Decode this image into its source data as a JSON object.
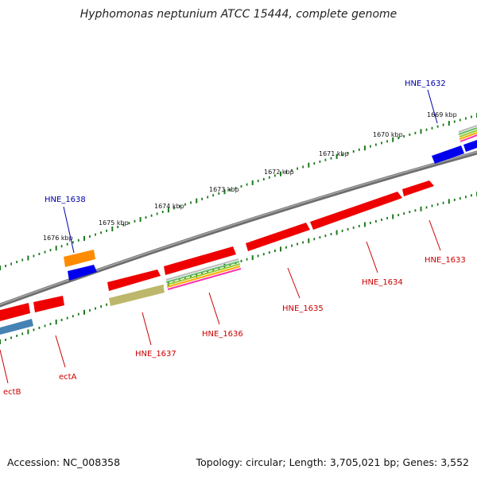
{
  "title": "Hyphomonas neptunium ATCC 15444, complete genome",
  "footer": {
    "accession": "Accession: NC_008358",
    "summary": "Topology: circular; Length: 3,705,021 bp; Genes: 3,552"
  },
  "colors": {
    "backbone": "#808080",
    "tick": "#1a7a1a",
    "cds": "#ff0000",
    "blue": "#0000ee",
    "steel": "#4682b4",
    "orange": "#ff8c00",
    "khaki": "#bdb76b",
    "label_red": "#cc0000",
    "label_blue": "#0000aa"
  },
  "kbp_labels": [
    {
      "text": "1669 kbp"
    },
    {
      "text": "1670 kbp"
    },
    {
      "text": "1671 kbp"
    },
    {
      "text": "1672 kbp"
    },
    {
      "text": "1673 kbp"
    },
    {
      "text": "1674 kbp"
    },
    {
      "text": "1675 kbp"
    },
    {
      "text": "1676 kbp"
    }
  ],
  "gene_labels": [
    {
      "text": "HNE_1632",
      "color": "blue"
    },
    {
      "text": "HNE_1638",
      "color": "blue"
    },
    {
      "text": "HNE_1633",
      "color": "red"
    },
    {
      "text": "HNE_1634",
      "color": "red"
    },
    {
      "text": "HNE_1635",
      "color": "red"
    },
    {
      "text": "HNE_1636",
      "color": "red"
    },
    {
      "text": "HNE_1637",
      "color": "red"
    },
    {
      "text": "ectA",
      "color": "red"
    },
    {
      "text": "ectB",
      "color": "red"
    }
  ]
}
